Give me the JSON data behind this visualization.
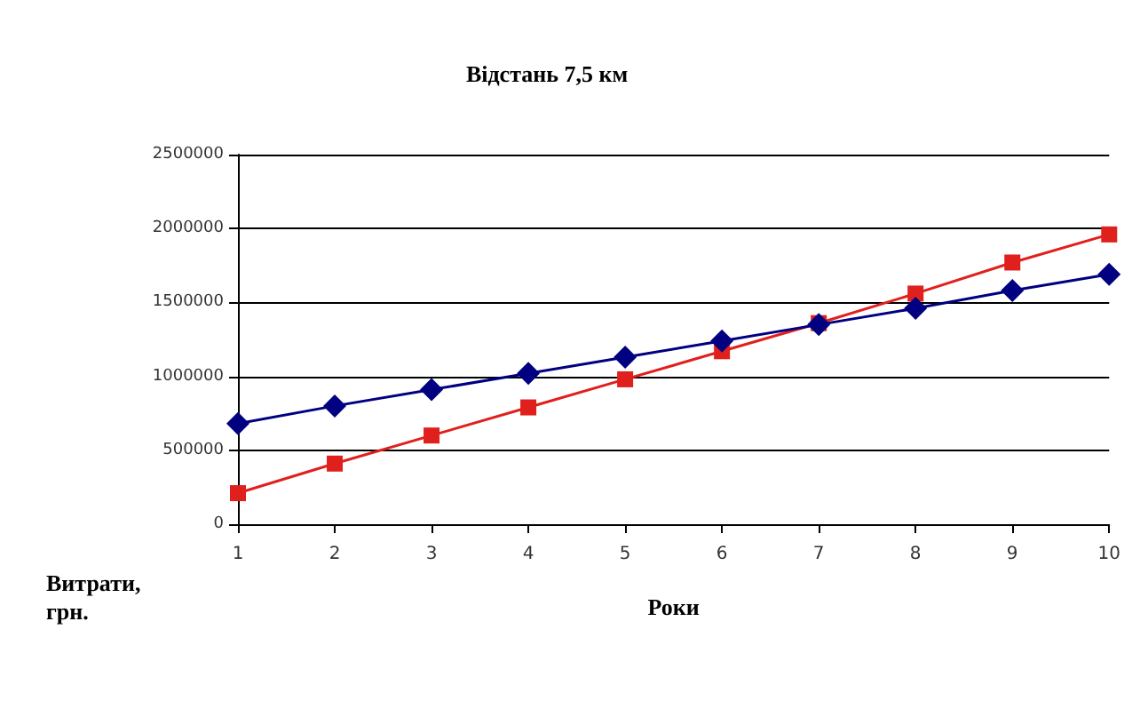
{
  "chart_data": {
    "type": "line",
    "title": "Відстань 7,5 км",
    "xlabel": "Роки",
    "ylabel": "Витрати, грн.",
    "x": [
      1,
      2,
      3,
      4,
      5,
      6,
      7,
      8,
      9,
      10
    ],
    "series": [
      {
        "color": "#000080",
        "marker": "diamond",
        "values": [
          680000,
          800000,
          910000,
          1020000,
          1130000,
          1240000,
          1350000,
          1460000,
          1580000,
          1690000
        ]
      },
      {
        "color": "#e0201c",
        "marker": "square",
        "values": [
          210000,
          410000,
          600000,
          790000,
          980000,
          1170000,
          1360000,
          1560000,
          1770000,
          1960000
        ]
      }
    ],
    "xlim": [
      1,
      10
    ],
    "xticks": [
      1,
      2,
      3,
      4,
      5,
      6,
      7,
      8,
      9,
      10
    ],
    "ylim": [
      0,
      2500000
    ],
    "yticks": [
      0,
      500000,
      1000000,
      1500000,
      2000000,
      2500000
    ],
    "grid": "y",
    "line_style": "solid"
  }
}
